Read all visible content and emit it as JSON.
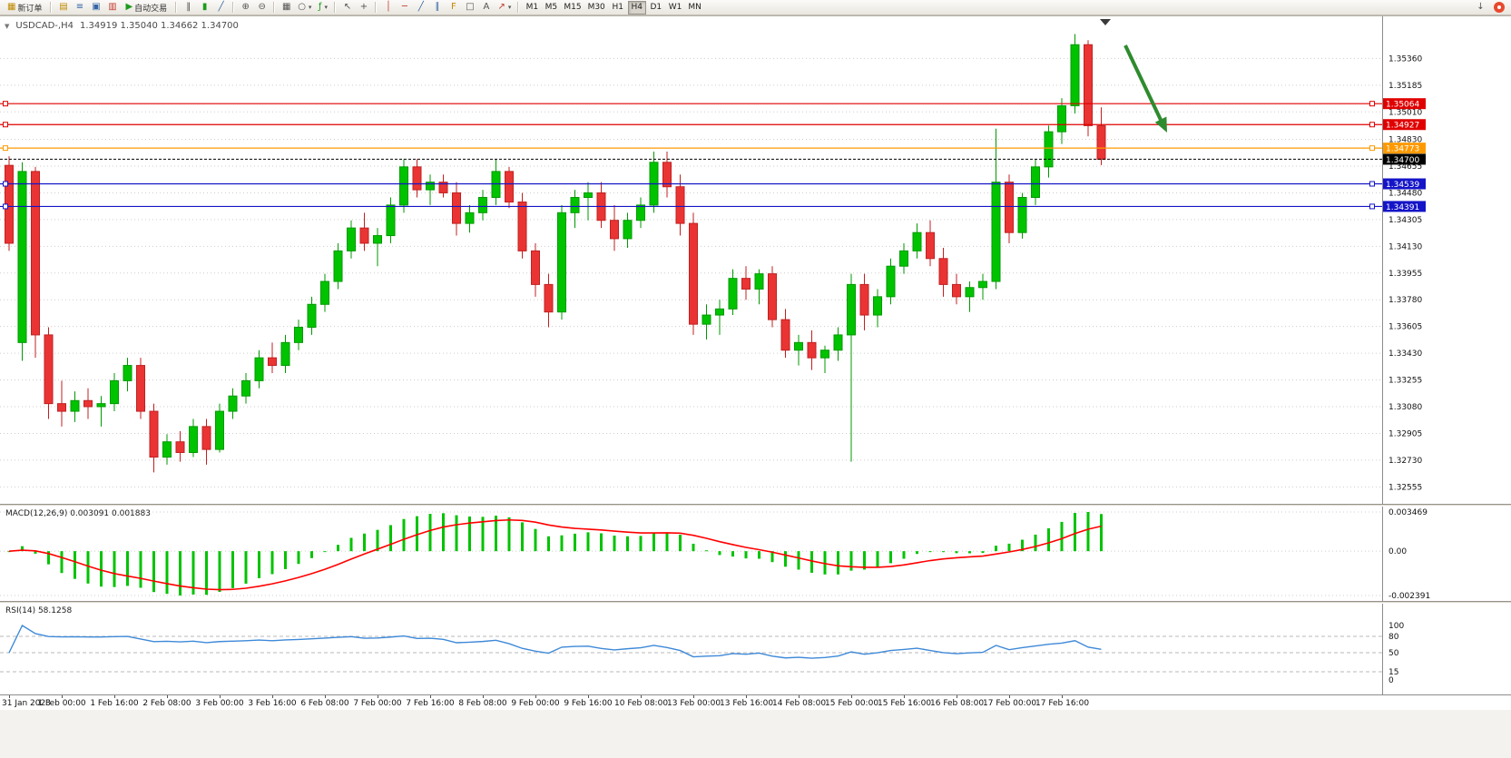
{
  "toolbar": {
    "new_order": "新订单",
    "auto_trading": "自动交易",
    "timeframes": [
      "M1",
      "M5",
      "M15",
      "M30",
      "H1",
      "H4",
      "D1",
      "W1",
      "MN"
    ],
    "active_timeframe": "H4"
  },
  "icons": {
    "collapse": "▼",
    "new_order": "▦",
    "charts": "▤",
    "market_watch": "≡",
    "navigator": "▣",
    "terminal": "▥",
    "auto_trading_play": "▶",
    "bar_chart": "‖",
    "candlestick_chart": "▮",
    "line_chart": "╱",
    "zoom_in": "⊕",
    "zoom_out": "⊖",
    "tile_windows": "▦",
    "periods": "○",
    "indicators": "ƒ",
    "cursor": "↖",
    "crosshair": "+",
    "vertical_line": "│",
    "horizontal_line": "─",
    "trendline": "╱",
    "channel": "∥",
    "fibonacci": "F",
    "shapes": "□",
    "text": "A",
    "arrows": "↗",
    "dropdown": "▾",
    "download": "↓"
  },
  "chart": {
    "symbol_title": "USDCAD-,H4",
    "ohlc_text": "1.34919 1.35040 1.34662 1.34700",
    "price_scale_labels": [
      "1.35360",
      "1.35185",
      "1.35010",
      "1.34830",
      "1.34655",
      "1.34480",
      "1.34305",
      "1.34130",
      "1.33955",
      "1.33780",
      "1.33605",
      "1.33430",
      "1.33255",
      "1.33080",
      "1.32905",
      "1.32730",
      "1.32555"
    ],
    "horizontal_lines": [
      {
        "price": 1.35064,
        "label": "1.35064",
        "color": "#e00000"
      },
      {
        "price": 1.34927,
        "label": "1.34927",
        "color": "#e00000"
      },
      {
        "price": 1.34773,
        "label": "1.34773",
        "color": "#ff9900"
      },
      {
        "price": 1.34539,
        "label": "1.34539",
        "color": "#1414c8"
      },
      {
        "price": 1.34391,
        "label": "1.34391",
        "color": "#1414c8"
      }
    ],
    "current_price": {
      "price": 1.347,
      "label": "1.34700",
      "color": "#000000"
    },
    "colors": {
      "bull": "#00c300",
      "bull_border": "#009a00",
      "bear": "#ea3434",
      "bear_border": "#c02020",
      "grid": "#cdcdcd",
      "arrow": "#2e8b2e"
    }
  },
  "chart_data": {
    "type": "candlestick",
    "title": "USDCAD-,H4",
    "symbol": "USDCAD-",
    "timeframe": "H4",
    "y_range": [
      1.3245,
      1.356
    ],
    "label_every": 4,
    "time_labels": [
      "31 Jan 2023",
      "1 Feb 00:00",
      "1 Feb 16:00",
      "2 Feb 08:00",
      "3 Feb 00:00",
      "3 Feb 16:00",
      "6 Feb 08:00",
      "7 Feb 00:00",
      "7 Feb 16:00",
      "8 Feb 08:00",
      "9 Feb 00:00",
      "9 Feb 16:00",
      "10 Feb 08:00",
      "13 Feb 00:00",
      "13 Feb 16:00",
      "14 Feb 08:00",
      "15 Feb 00:00",
      "15 Feb 16:00",
      "16 Feb 08:00",
      "17 Feb 00:00",
      "17 Feb 16:00"
    ],
    "ohlc": [
      [
        1.3466,
        1.3472,
        1.341,
        1.3415
      ],
      [
        1.335,
        1.3468,
        1.3338,
        1.3462
      ],
      [
        1.3462,
        1.3465,
        1.334,
        1.3355
      ],
      [
        1.3355,
        1.336,
        1.33,
        1.331
      ],
      [
        1.331,
        1.3325,
        1.3295,
        1.3305
      ],
      [
        1.3305,
        1.3318,
        1.3298,
        1.3312
      ],
      [
        1.3312,
        1.332,
        1.33,
        1.3308
      ],
      [
        1.3308,
        1.3315,
        1.3295,
        1.331
      ],
      [
        1.331,
        1.333,
        1.3305,
        1.3325
      ],
      [
        1.3325,
        1.334,
        1.3318,
        1.3335
      ],
      [
        1.3335,
        1.334,
        1.33,
        1.3305
      ],
      [
        1.3305,
        1.331,
        1.3265,
        1.3275
      ],
      [
        1.3275,
        1.329,
        1.327,
        1.3285
      ],
      [
        1.3285,
        1.3292,
        1.3272,
        1.3278
      ],
      [
        1.3278,
        1.33,
        1.3275,
        1.3295
      ],
      [
        1.3295,
        1.33,
        1.327,
        1.328
      ],
      [
        1.328,
        1.331,
        1.3278,
        1.3305
      ],
      [
        1.3305,
        1.332,
        1.33,
        1.3315
      ],
      [
        1.3315,
        1.333,
        1.331,
        1.3325
      ],
      [
        1.3325,
        1.3345,
        1.332,
        1.334
      ],
      [
        1.334,
        1.335,
        1.333,
        1.3335
      ],
      [
        1.3335,
        1.3355,
        1.333,
        1.335
      ],
      [
        1.335,
        1.3365,
        1.3345,
        1.336
      ],
      [
        1.336,
        1.338,
        1.3355,
        1.3375
      ],
      [
        1.3375,
        1.3395,
        1.337,
        1.339
      ],
      [
        1.339,
        1.3415,
        1.3385,
        1.341
      ],
      [
        1.341,
        1.343,
        1.3405,
        1.3425
      ],
      [
        1.3425,
        1.3435,
        1.341,
        1.3415
      ],
      [
        1.3415,
        1.3425,
        1.34,
        1.342
      ],
      [
        1.342,
        1.3445,
        1.3415,
        1.344
      ],
      [
        1.344,
        1.347,
        1.3435,
        1.3465
      ],
      [
        1.3465,
        1.347,
        1.3445,
        1.345
      ],
      [
        1.345,
        1.346,
        1.344,
        1.3455
      ],
      [
        1.3455,
        1.346,
        1.3445,
        1.3448
      ],
      [
        1.3448,
        1.3455,
        1.342,
        1.3428
      ],
      [
        1.3428,
        1.344,
        1.3422,
        1.3435
      ],
      [
        1.3435,
        1.345,
        1.343,
        1.3445
      ],
      [
        1.3445,
        1.347,
        1.344,
        1.3462
      ],
      [
        1.3462,
        1.3465,
        1.3438,
        1.3442
      ],
      [
        1.3442,
        1.3448,
        1.3405,
        1.341
      ],
      [
        1.341,
        1.3415,
        1.338,
        1.3388
      ],
      [
        1.3388,
        1.3395,
        1.336,
        1.337
      ],
      [
        1.337,
        1.344,
        1.3365,
        1.3435
      ],
      [
        1.3435,
        1.345,
        1.3425,
        1.3445
      ],
      [
        1.3445,
        1.3455,
        1.343,
        1.3448
      ],
      [
        1.3448,
        1.3455,
        1.3425,
        1.343
      ],
      [
        1.343,
        1.344,
        1.341,
        1.3418
      ],
      [
        1.3418,
        1.3435,
        1.3412,
        1.343
      ],
      [
        1.343,
        1.3445,
        1.3425,
        1.344
      ],
      [
        1.344,
        1.3475,
        1.3435,
        1.3468
      ],
      [
        1.3468,
        1.3475,
        1.3445,
        1.3452
      ],
      [
        1.3452,
        1.346,
        1.342,
        1.3428
      ],
      [
        1.3428,
        1.3435,
        1.3355,
        1.3362
      ],
      [
        1.3362,
        1.3375,
        1.3352,
        1.3368
      ],
      [
        1.3368,
        1.3378,
        1.3355,
        1.3372
      ],
      [
        1.3372,
        1.3398,
        1.3368,
        1.3392
      ],
      [
        1.3392,
        1.34,
        1.3378,
        1.3385
      ],
      [
        1.3385,
        1.3398,
        1.3375,
        1.3395
      ],
      [
        1.3395,
        1.34,
        1.336,
        1.3365
      ],
      [
        1.3365,
        1.3372,
        1.334,
        1.3345
      ],
      [
        1.3345,
        1.3355,
        1.3335,
        1.335
      ],
      [
        1.335,
        1.3358,
        1.3332,
        1.334
      ],
      [
        1.334,
        1.3348,
        1.333,
        1.3345
      ],
      [
        1.3345,
        1.336,
        1.3338,
        1.3355
      ],
      [
        1.3355,
        1.3395,
        1.3272,
        1.3388
      ],
      [
        1.3388,
        1.3395,
        1.3358,
        1.3368
      ],
      [
        1.3368,
        1.3385,
        1.336,
        1.338
      ],
      [
        1.338,
        1.3405,
        1.3375,
        1.34
      ],
      [
        1.34,
        1.3415,
        1.3395,
        1.341
      ],
      [
        1.341,
        1.3428,
        1.3405,
        1.3422
      ],
      [
        1.3422,
        1.343,
        1.34,
        1.3405
      ],
      [
        1.3405,
        1.3412,
        1.338,
        1.3388
      ],
      [
        1.3388,
        1.3395,
        1.3375,
        1.338
      ],
      [
        1.338,
        1.339,
        1.337,
        1.3386
      ],
      [
        1.3386,
        1.3395,
        1.3378,
        1.339
      ],
      [
        1.339,
        1.349,
        1.3385,
        1.3455
      ],
      [
        1.3455,
        1.346,
        1.3415,
        1.3422
      ],
      [
        1.3422,
        1.3448,
        1.3418,
        1.3445
      ],
      [
        1.3445,
        1.347,
        1.344,
        1.3465
      ],
      [
        1.3465,
        1.3492,
        1.3458,
        1.3488
      ],
      [
        1.3488,
        1.351,
        1.348,
        1.3505
      ],
      [
        1.3505,
        1.3552,
        1.35,
        1.3545
      ],
      [
        1.3545,
        1.3548,
        1.3485,
        1.3492
      ],
      [
        1.34919,
        1.3504,
        1.34662,
        1.347
      ]
    ]
  },
  "macd": {
    "label": "MACD(12,26,9) 0.003091 0.001883",
    "params": [
      12,
      26,
      9
    ],
    "values_text": [
      "0.003091",
      "0.001883"
    ],
    "scale": {
      "max": "0.003469",
      "zero": "0.00",
      "min": "-0.002391"
    },
    "colors": {
      "histogram": "#00c300",
      "signal": "#ff0000"
    }
  },
  "rsi": {
    "label": "RSI(14) 58.1258",
    "period": 14,
    "value": "58.1258",
    "levels": [
      80,
      50,
      15
    ],
    "scale_labels": [
      "100",
      "80",
      "50",
      "15",
      "0"
    ],
    "color": "#3e89d8"
  }
}
